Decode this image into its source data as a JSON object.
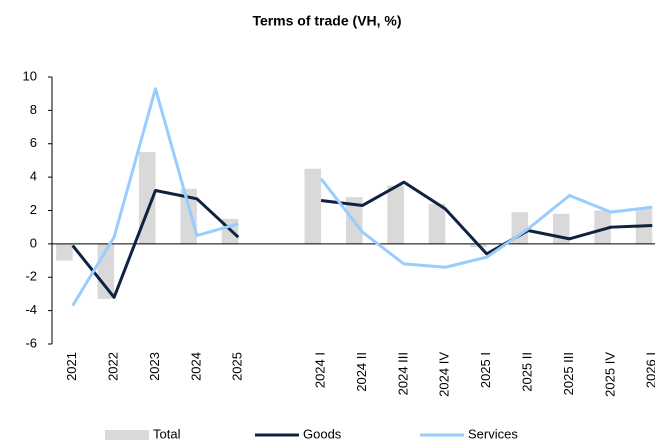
{
  "chart_data": {
    "type": "bar",
    "title": "Terms of trade (VH, %)",
    "categories": [
      "2021",
      "2022",
      "2023",
      "2024",
      "2025",
      null,
      "2024 I",
      "2024 II",
      "2024 III",
      "2024 IV",
      "2025 I",
      "2025 II",
      "2025 III",
      "2025 IV",
      "2026 I"
    ],
    "series": [
      {
        "name": "Total",
        "type": "bar",
        "color": "#d9d9d9",
        "values": [
          -1.0,
          -3.3,
          5.5,
          3.3,
          1.5,
          null,
          4.5,
          2.8,
          3.5,
          2.4,
          -0.2,
          1.9,
          1.8,
          2.0,
          2.1
        ]
      },
      {
        "name": "Goods",
        "type": "line",
        "color": "#0f2340",
        "values": [
          -0.1,
          -3.2,
          3.2,
          2.7,
          0.4,
          null,
          2.6,
          2.3,
          3.7,
          2.1,
          -0.6,
          0.8,
          0.3,
          1.0,
          1.1
        ]
      },
      {
        "name": "Services",
        "type": "line",
        "color": "#99ccff",
        "values": [
          -3.7,
          0.4,
          9.3,
          0.5,
          1.2,
          null,
          3.9,
          0.7,
          -1.2,
          -1.4,
          -0.8,
          0.9,
          2.9,
          1.9,
          2.2
        ]
      }
    ],
    "ylim": [
      -6,
      10
    ],
    "yticks": [
      -6,
      -4,
      -2,
      0,
      2,
      4,
      6,
      8,
      10
    ],
    "legend": "bottom"
  }
}
